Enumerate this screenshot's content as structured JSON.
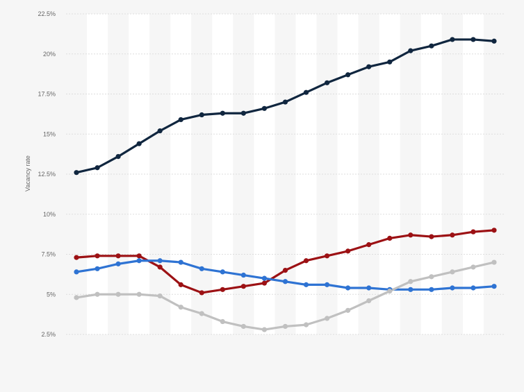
{
  "chart_data": {
    "type": "line",
    "title": "",
    "xlabel": "",
    "ylabel": "Vacancy rate",
    "ylim": [
      2.5,
      22.5
    ],
    "yticks": [
      {
        "value": 2.5,
        "label": "2.5%"
      },
      {
        "value": 5,
        "label": "5%"
      },
      {
        "value": 7.5,
        "label": "7.5%"
      },
      {
        "value": 10,
        "label": "10%"
      },
      {
        "value": 12.5,
        "label": "12.5%"
      },
      {
        "value": 15,
        "label": "15%"
      },
      {
        "value": 17.5,
        "label": "17.5%"
      },
      {
        "value": 20,
        "label": "20%"
      },
      {
        "value": 22.5,
        "label": "22.5%"
      }
    ],
    "x_count": 21,
    "x_labels_visible": false,
    "grid": true,
    "legend": "none",
    "series": [
      {
        "color": "#10263f",
        "values": [
          12.6,
          12.9,
          13.6,
          14.4,
          15.2,
          15.9,
          16.2,
          16.3,
          16.3,
          16.6,
          17.0,
          17.6,
          18.2,
          18.7,
          19.2,
          19.5,
          20.2,
          20.5,
          20.9,
          20.9,
          20.8
        ]
      },
      {
        "color": "#9c1114",
        "values": [
          7.3,
          7.4,
          7.4,
          7.4,
          6.7,
          5.6,
          5.1,
          5.3,
          5.5,
          5.7,
          6.5,
          7.1,
          7.4,
          7.7,
          8.1,
          8.5,
          8.7,
          8.6,
          8.7,
          8.9,
          9.0
        ]
      },
      {
        "color": "#2e73d3",
        "values": [
          6.4,
          6.6,
          6.9,
          7.1,
          7.1,
          7.0,
          6.6,
          6.4,
          6.2,
          6.0,
          5.8,
          5.6,
          5.6,
          5.4,
          5.4,
          5.3,
          5.3,
          5.3,
          5.4,
          5.4,
          5.5
        ]
      },
      {
        "color": "#c0c0c0",
        "values": [
          4.8,
          5.0,
          5.0,
          5.0,
          4.9,
          4.2,
          3.8,
          3.3,
          3.0,
          2.8,
          3.0,
          3.1,
          3.5,
          4.0,
          4.6,
          5.2,
          5.8,
          6.1,
          6.4,
          6.7,
          7.0
        ]
      }
    ]
  }
}
